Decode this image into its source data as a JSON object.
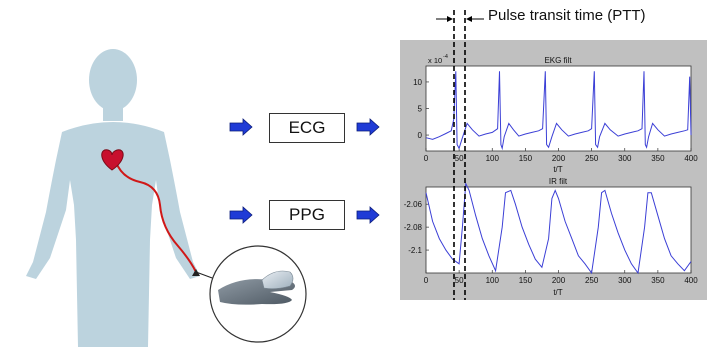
{
  "header": {
    "ptt_label": "Pulse transit time (PTT)"
  },
  "blocks": {
    "ecg_label": "ECG",
    "ppg_label": "PPG"
  },
  "colors": {
    "panel_bg": "#c0c0c0",
    "signal": "#3b3fd6",
    "body": "#bcd3de",
    "arrow": "#1f3bd6",
    "wire": "#d01818",
    "heart": "#c8102e"
  },
  "icons": [
    "human-body-silhouette-icon",
    "heart-icon",
    "hand-sensor-icon",
    "right-arrow-icon"
  ],
  "chart_data": [
    {
      "type": "line",
      "title": "EKG filt",
      "xlabel": "t/T",
      "exponent_label": "x 10",
      "exponent_power": "-4",
      "xlim": [
        0,
        400
      ],
      "ylim": [
        -3,
        13
      ],
      "xticks": [
        0,
        50,
        100,
        150,
        200,
        250,
        300,
        350,
        400
      ],
      "yticks": [
        0,
        5,
        10
      ],
      "x": [
        0,
        10,
        20,
        30,
        38,
        42,
        45,
        47,
        50,
        55,
        62,
        70,
        80,
        90,
        100,
        108,
        111,
        113,
        115,
        118,
        125,
        132,
        140,
        150,
        160,
        170,
        176,
        180,
        182,
        185,
        190,
        197,
        205,
        215,
        225,
        235,
        245,
        250,
        254,
        256,
        259,
        262,
        270,
        278,
        290,
        300,
        310,
        320,
        326,
        329,
        331,
        333,
        336,
        342,
        350,
        360,
        370,
        380,
        390,
        395,
        398,
        400
      ],
      "y": [
        -0.5,
        -0.8,
        -0.3,
        0.3,
        0.8,
        3,
        12,
        -1.8,
        -2.5,
        -0.5,
        2.2,
        1,
        -0.2,
        0.2,
        0.5,
        1.2,
        12,
        -1.8,
        -2.5,
        -0.3,
        2.2,
        1,
        -0.2,
        0.2,
        0.5,
        0.8,
        1.2,
        12,
        -1.8,
        -2.3,
        -0.3,
        2.2,
        1,
        -0.2,
        0.2,
        0.5,
        0.8,
        1.2,
        12,
        -1.8,
        -2.3,
        -0.3,
        2.2,
        1,
        -0.2,
        0.2,
        0.5,
        0.8,
        1.2,
        12,
        -1.8,
        -2.3,
        -0.3,
        2.2,
        1,
        -0.2,
        0.2,
        0.5,
        0.8,
        1,
        11,
        0
      ]
    },
    {
      "type": "line",
      "title": "IR filt",
      "xlabel": "t/T",
      "xlim": [
        0,
        400
      ],
      "ylim": [
        -2.12,
        -2.045
      ],
      "xticks": [
        0,
        50,
        100,
        150,
        200,
        250,
        300,
        350,
        400
      ],
      "yticks": [
        -2.06,
        -2.08,
        -2.1
      ],
      "ytick_labels": [
        "-2.06",
        "-2.08",
        "-2.1"
      ],
      "x": [
        0,
        10,
        20,
        30,
        40,
        50,
        55,
        60,
        65,
        75,
        85,
        95,
        105,
        115,
        120,
        128,
        135,
        145,
        155,
        165,
        175,
        185,
        190,
        195,
        200,
        210,
        220,
        230,
        240,
        250,
        260,
        265,
        270,
        280,
        290,
        300,
        310,
        320,
        330,
        335,
        340,
        350,
        360,
        370,
        380,
        390,
        400
      ],
      "y": [
        -2.05,
        -2.075,
        -2.09,
        -2.1,
        -2.108,
        -2.112,
        -2.08,
        -2.042,
        -2.048,
        -2.07,
        -2.09,
        -2.105,
        -2.118,
        -2.08,
        -2.05,
        -2.048,
        -2.06,
        -2.08,
        -2.095,
        -2.108,
        -2.115,
        -2.09,
        -2.055,
        -2.048,
        -2.055,
        -2.075,
        -2.09,
        -2.105,
        -2.112,
        -2.12,
        -2.08,
        -2.05,
        -2.048,
        -2.068,
        -2.085,
        -2.1,
        -2.112,
        -2.12,
        -2.08,
        -2.05,
        -2.05,
        -2.07,
        -2.09,
        -2.105,
        -2.112,
        -2.118,
        -2.11
      ]
    }
  ]
}
